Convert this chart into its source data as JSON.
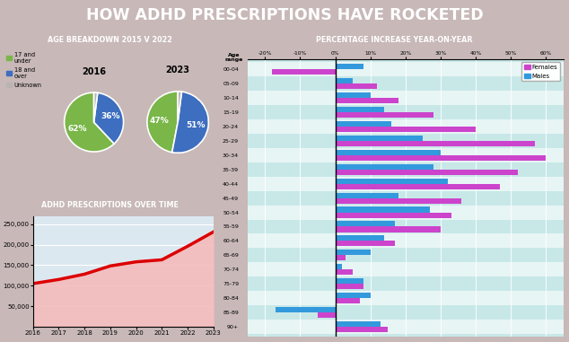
{
  "title": "HOW ADHD PRESCRIPTIONS HAVE ROCKETED",
  "title_bg": "#cc0000",
  "title_color": "#ffffff",
  "pie_title": "AGE BREAKDOWN 2015 V 2022",
  "pie_title_bg": "#cc0000",
  "pie_title_color": "#ffffff",
  "pie2016_values": [
    62,
    36,
    2
  ],
  "pie2016_colors": [
    "#7ab648",
    "#3d6ebf",
    "#b8b4b4"
  ],
  "pie2016_year": "2016",
  "pie2023_values": [
    47,
    51,
    2
  ],
  "pie2023_colors": [
    "#7ab648",
    "#3d6ebf",
    "#b8b4b4"
  ],
  "pie2023_year": "2023",
  "legend_labels": [
    "17 and\nunder",
    "18 and\nover",
    "Unknown"
  ],
  "legend_colors": [
    "#7ab648",
    "#3d6ebf",
    "#b8b4b4"
  ],
  "line_title": "ADHD PRESCRIPTIONS OVER TIME",
  "line_title_bg": "#cc0000",
  "line_title_color": "#ffffff",
  "line_years": [
    2016,
    2017,
    2018,
    2019,
    2020,
    2021,
    2022,
    2023
  ],
  "line_values": [
    105000,
    115000,
    128000,
    148000,
    158000,
    163000,
    196000,
    231000
  ],
  "line_color": "#dd0000",
  "line_fill_color": "#f5b8b8",
  "line_bg": "#dce8f0",
  "bar_title": "PERCENTAGE INCREASE YEAR-ON-YEAR",
  "bar_title_bg": "#cc0000",
  "bar_title_color": "#ffffff",
  "bar_bg": "#c8e8e8",
  "age_groups": [
    "00-04",
    "05-09",
    "10-14",
    "15-19",
    "20-24",
    "25-29",
    "30-34",
    "35-39",
    "40-44",
    "45-49",
    "50-54",
    "55-59",
    "60-64",
    "65-69",
    "70-74",
    "75-79",
    "80-84",
    "85-89",
    "90+"
  ],
  "females": [
    -18,
    12,
    18,
    28,
    40,
    57,
    60,
    52,
    47,
    36,
    33,
    30,
    17,
    3,
    5,
    8,
    7,
    -5,
    15
  ],
  "males": [
    8,
    5,
    10,
    14,
    16,
    25,
    30,
    28,
    32,
    18,
    27,
    17,
    14,
    10,
    2,
    8,
    10,
    -17,
    13
  ],
  "female_color": "#cc44cc",
  "male_color": "#3399dd",
  "left_bg": "#d8c8c8",
  "right_bg": "#c8e8e8",
  "overall_bg": "#c8b8b8"
}
